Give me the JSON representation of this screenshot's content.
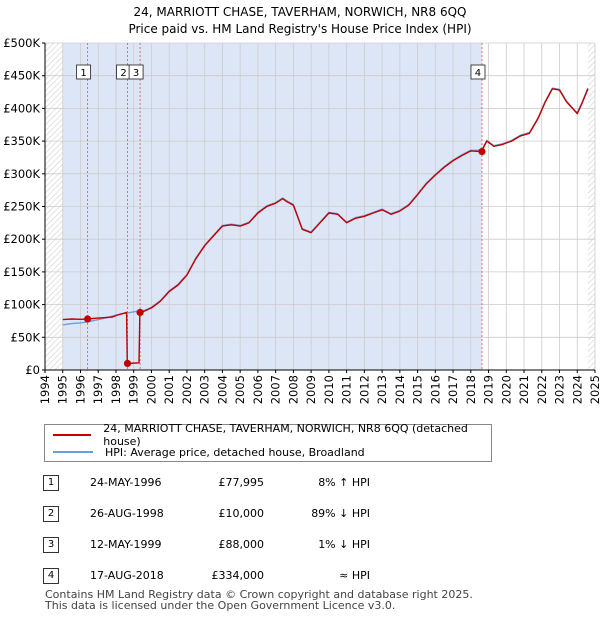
{
  "title_line1": "24, MARRIOTT CHASE, TAVERHAM, NORWICH, NR8 6QQ",
  "title_line2": "Price paid vs. HM Land Registry's House Price Index (HPI)",
  "chart_data": {
    "type": "line",
    "title": "24, MARRIOTT CHASE, TAVERHAM, NORWICH, NR8 6QQ — Price paid vs. HM Land Registry's House Price Index (HPI)",
    "xlim": [
      1994,
      2025
    ],
    "ylim": [
      0,
      500000
    ],
    "y_ticks": [
      0,
      50000,
      100000,
      150000,
      200000,
      250000,
      300000,
      350000,
      400000,
      450000,
      500000
    ],
    "y_tick_labels": [
      "£0",
      "£50K",
      "£100K",
      "£150K",
      "£200K",
      "£250K",
      "£300K",
      "£350K",
      "£400K",
      "£450K",
      "£500K"
    ],
    "x_ticks": [
      1994,
      1995,
      1996,
      1997,
      1998,
      1999,
      2000,
      2001,
      2002,
      2003,
      2004,
      2005,
      2006,
      2007,
      2008,
      2009,
      2010,
      2011,
      2012,
      2013,
      2014,
      2015,
      2016,
      2017,
      2018,
      2019,
      2020,
      2021,
      2022,
      2023,
      2024,
      2025
    ],
    "x_tick_labels": [
      "1994",
      "1995",
      "1996",
      "1997",
      "1998",
      "1999",
      "2000",
      "2001",
      "2002",
      "2003",
      "2004",
      "2005",
      "2006",
      "2007",
      "2008",
      "2009",
      "2010",
      "2011",
      "2012",
      "2013",
      "2014",
      "2015",
      "2016",
      "2017",
      "2018",
      "2019",
      "2020",
      "2021",
      "2022",
      "2023",
      "2024",
      "2025"
    ],
    "grid": true,
    "shaded_period": [
      1995.0,
      2018.63
    ],
    "hatched_regions": [
      [
        1994.0,
        1995.0
      ],
      [
        2024.6,
        2025.0
      ]
    ],
    "series": [
      {
        "name": "24, MARRIOTT CHASE, TAVERHAM, NORWICH, NR8 6QQ (detached house)",
        "color": "#c00000",
        "x": [
          1995.0,
          1995.5,
          1996.0,
          1996.4,
          1996.8,
          1997.3,
          1997.8,
          1998.2,
          1998.6,
          1998.64,
          1998.66,
          1999.3,
          1999.35,
          1999.6,
          2000.0,
          2000.5,
          2001.0,
          2001.5,
          2002.0,
          2002.5,
          2003.0,
          2003.5,
          2004.0,
          2004.5,
          2005.0,
          2005.5,
          2006.0,
          2006.5,
          2007.0,
          2007.4,
          2007.6,
          2008.0,
          2008.5,
          2009.0,
          2009.5,
          2010.0,
          2010.5,
          2011.0,
          2011.5,
          2012.0,
          2012.5,
          2013.0,
          2013.5,
          2014.0,
          2014.5,
          2015.0,
          2015.5,
          2016.0,
          2016.5,
          2017.0,
          2017.5,
          2018.0,
          2018.6,
          2018.9,
          2019.3,
          2019.8,
          2020.3,
          2020.8,
          2021.3,
          2021.8,
          2022.2,
          2022.6,
          2023.0,
          2023.4,
          2023.8,
          2024.0,
          2024.3,
          2024.6
        ],
        "values": [
          77000,
          78000,
          77500,
          78000,
          79000,
          80000,
          81000,
          85000,
          88000,
          10000,
          10000,
          11000,
          88000,
          90000,
          95000,
          105000,
          120000,
          130000,
          145000,
          170000,
          190000,
          205000,
          220000,
          222000,
          220000,
          225000,
          240000,
          250000,
          255000,
          262000,
          258000,
          252000,
          215000,
          210000,
          225000,
          240000,
          238000,
          225000,
          232000,
          235000,
          240000,
          245000,
          238000,
          243000,
          252000,
          268000,
          285000,
          298000,
          310000,
          320000,
          328000,
          335000,
          334000,
          350000,
          342000,
          345000,
          350000,
          358000,
          362000,
          385000,
          410000,
          430000,
          428000,
          410000,
          398000,
          392000,
          410000,
          430000
        ]
      },
      {
        "name": "HPI: Average price, detached house, Broadland",
        "color": "#6a9fd8",
        "x": [
          1995.0,
          1995.5,
          1996.0,
          1996.5,
          1997.0,
          1997.5,
          1998.0,
          1998.6,
          1999.0,
          1999.6,
          2000.0,
          2000.5,
          2001.0,
          2001.5,
          2002.0,
          2002.5,
          2003.0,
          2003.5,
          2004.0,
          2004.5,
          2005.0,
          2005.5,
          2006.0,
          2006.5,
          2007.0,
          2007.4,
          2007.6,
          2008.0,
          2008.5,
          2009.0,
          2009.5,
          2010.0,
          2010.5,
          2011.0,
          2011.5,
          2012.0,
          2012.5,
          2013.0,
          2013.5,
          2014.0,
          2014.5,
          2015.0,
          2015.5,
          2016.0,
          2016.5,
          2017.0,
          2017.5,
          2018.0,
          2018.6,
          2018.9,
          2019.3,
          2019.8,
          2020.3,
          2020.8,
          2021.3,
          2021.8,
          2022.2,
          2022.6,
          2023.0,
          2023.4,
          2023.8,
          2024.0,
          2024.3,
          2024.6
        ],
        "values": [
          69000,
          71000,
          72000,
          74000,
          77000,
          80000,
          84000,
          87000,
          89000,
          91000,
          96000,
          106000,
          121000,
          131000,
          146000,
          171000,
          191000,
          206000,
          221000,
          223000,
          221000,
          226000,
          241000,
          251000,
          256000,
          263000,
          259000,
          253000,
          216000,
          211000,
          226000,
          241000,
          239000,
          226000,
          233000,
          236000,
          241000,
          246000,
          239000,
          244000,
          253000,
          269000,
          286000,
          299000,
          311000,
          321000,
          329000,
          336000,
          336000,
          351000,
          343000,
          346000,
          351000,
          359000,
          363000,
          386000,
          411000,
          431000,
          429000,
          411000,
          399000,
          393000,
          411000,
          431000
        ]
      }
    ],
    "sale_points": [
      {
        "label": "1",
        "x": 1996.4,
        "y": 77995
      },
      {
        "label": "2",
        "x": 1998.65,
        "y": 10000
      },
      {
        "label": "3",
        "x": 1999.36,
        "y": 88000
      },
      {
        "label": "4",
        "x": 2018.63,
        "y": 334000
      }
    ]
  },
  "legend": {
    "red_label": "24, MARRIOTT CHASE, TAVERHAM, NORWICH, NR8 6QQ (detached house)",
    "blue_label": "HPI: Average price, detached house, Broadland"
  },
  "sales": [
    {
      "num": "1",
      "date": "24-MAY-1996",
      "price": "£77,995",
      "hpi": "8% ↑ HPI"
    },
    {
      "num": "2",
      "date": "26-AUG-1998",
      "price": "£10,000",
      "hpi": "89% ↓ HPI"
    },
    {
      "num": "3",
      "date": "12-MAY-1999",
      "price": "£88,000",
      "hpi": "1% ↓ HPI"
    },
    {
      "num": "4",
      "date": "17-AUG-2018",
      "price": "£334,000",
      "hpi": "≈ HPI"
    }
  ],
  "footer_line1": "Contains HM Land Registry data © Crown copyright and database right 2025.",
  "footer_line2": "This data is licensed under the Open Government Licence v3.0.",
  "colors": {
    "price": "#c00000",
    "hpi": "#6a9fd8",
    "shade": "#dde6f7",
    "grid": "#cccccc"
  }
}
